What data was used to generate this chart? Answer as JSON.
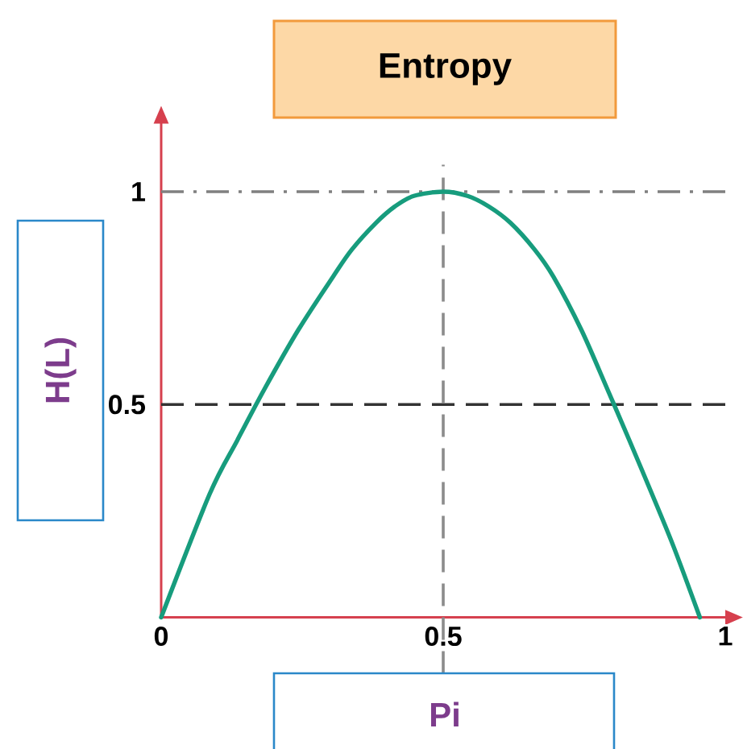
{
  "chart_data": {
    "type": "line",
    "title": "Entropy",
    "xlabel": "Pi",
    "ylabel": "H(L)",
    "x": [
      0,
      0.086,
      0.135,
      0.183,
      0.243,
      0.305,
      0.338,
      0.381,
      0.414,
      0.448,
      0.5,
      0.543,
      0.581,
      0.619,
      0.662,
      0.695,
      0.745,
      0.791,
      0.83,
      0.87,
      0.909,
      0.955
    ],
    "values": [
      0,
      0.29,
      0.416,
      0.536,
      0.675,
      0.801,
      0.864,
      0.927,
      0.965,
      0.99,
      1,
      0.99,
      0.965,
      0.927,
      0.864,
      0.801,
      0.675,
      0.536,
      0.416,
      0.29,
      0.164,
      0
    ],
    "color": "#179c7d",
    "marker": "none",
    "xlim": [
      0,
      1
    ],
    "ylim": [
      0,
      1.16
    ],
    "xticks": [
      0,
      0.5,
      1
    ],
    "yticks": [
      0.5,
      1
    ],
    "ref_lines": [
      {
        "axis": "y",
        "value": 1,
        "line_style": "dashdot",
        "color": "#808080"
      },
      {
        "axis": "y",
        "value": 0.5,
        "line_style": "dashed",
        "color": "#333333"
      },
      {
        "axis": "x",
        "value": 0.5,
        "line_style": "dashed",
        "color": "#8c8c8c"
      }
    ]
  }
}
